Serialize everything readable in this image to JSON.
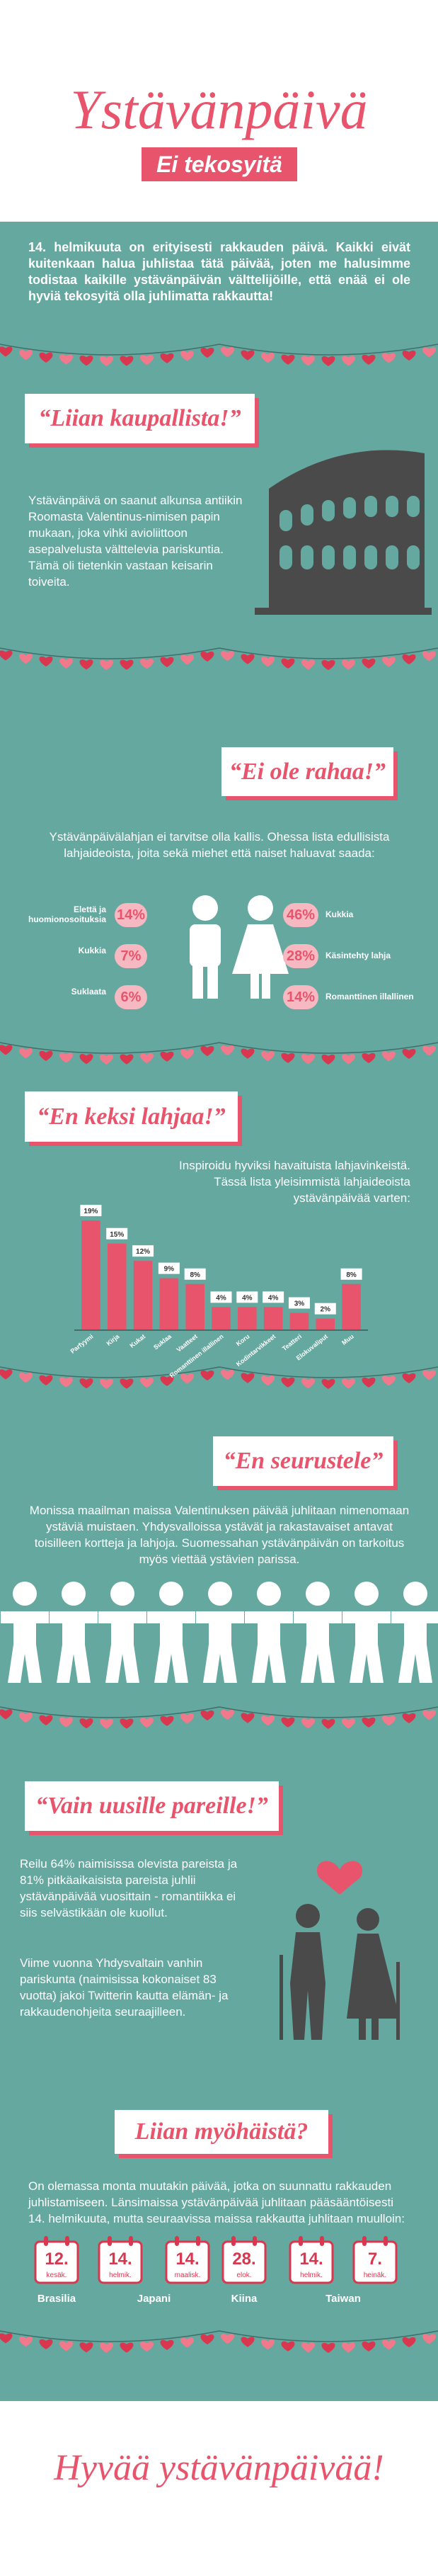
{
  "header": {
    "title": "Ystävänpäivä",
    "subtitle": "Ei tekosyitä"
  },
  "intro": "14. helmikuuta on erityisesti rakkauden päivä. Kaikki eivät kuitenkaan halua juhlistaa tätä päivää, joten me halusimme todistaa kaikille ystävänpäivän välttelijöille, että enää ei ole hyviä tekosyitä olla juhlimatta rakkautta!",
  "sections": [
    {
      "heading": "“Liian kaupallista!”",
      "text": "Ystävänpäivä on saanut alkunsa antiikin Roomasta Valentinus-nimisen papin mukaan, joka vihki avioliittoon asepalvelusta välttelevia pariskuntia. Tämä oli tietenkin vastaan keisarin toiveita."
    },
    {
      "heading": "“Ei ole rahaa!”",
      "text": "Ystävänpäivälahjan ei tarvitse olla kallis. Ohessa lista edullisista lahjaideoista, joita sekä miehet että naiset haluavat saada:",
      "gifts_men": [
        {
          "label": "Elettä ja huomionosoituksia",
          "percent": "14%"
        },
        {
          "label": "Kukkia",
          "percent": "7%"
        },
        {
          "label": "Suklaata",
          "percent": "6%"
        }
      ],
      "gifts_women": [
        {
          "label": "Kukkia",
          "percent": "46%"
        },
        {
          "label": "Käsintehty lahja",
          "percent": "28%"
        },
        {
          "label": "Romanttinen illallinen",
          "percent": "14%"
        }
      ]
    },
    {
      "heading": "“En keksi lahjaa!”",
      "text": "Inspiroidu hyviksi havaituista lahjavinkeistä. Tässä lista yleisimmistä lahjaideoista ystävänpäivää varten:"
    },
    {
      "heading": "“En seurustele”",
      "text": "Monissa maailman maissa Valentinuksen päivää juhlitaan nimenomaan ystäviä muistaen. Yhdysvalloissa ystävät ja rakastavaiset antavat toisilleen kortteja ja lahjoja. Suomessahan ystävänpäivän on tarkoitus myös viettää ystävien parissa."
    },
    {
      "heading": "“Vain uusille pareille!”",
      "paragraphs": [
        "Reilu 64% naimisissa olevista pareista ja 81% pitkäaikaisista pareista juhlii ystävänpäivää vuosittain - romantiikka ei siis selvästikään ole kuollut.",
        "Viime vuonna Yhdysvaltain vanhin pariskunta (naimisissa kokonaiset 83 vuotta) jakoi Twitterin kautta elämän- ja rakkaudenohjeita seuraajilleen."
      ]
    },
    {
      "heading": "Liian myöhäistä?",
      "text": "On olemassa monta muutakin päivää, jotka on suunnattu rakkauden juhlistamiseen. Länsimaissa ystävänpäivää juhlitaan pääsääntöisesti 14. helmikuuta, mutta seuraavissa maissa rakkautta juhlitaan muulloin:",
      "countries": [
        {
          "name": "Brasilia",
          "dates": [
            {
              "day": "12.",
              "month": "kesäk."
            }
          ]
        },
        {
          "name": "Japani",
          "dates": [
            {
              "day": "14.",
              "month": "helmik."
            },
            {
              "day": "14.",
              "month": "maalisk."
            }
          ]
        },
        {
          "name": "Kiina",
          "dates": [
            {
              "day": "28.",
              "month": "elok."
            }
          ]
        },
        {
          "name": "Taiwan",
          "dates": [
            {
              "day": "14.",
              "month": "helmik."
            },
            {
              "day": "7.",
              "month": "heinäk."
            }
          ]
        }
      ]
    }
  ],
  "chart_data": {
    "type": "bar",
    "categories": [
      "Parfyymi",
      "Kirja",
      "Kukat",
      "Suklaa",
      "Vaatteet",
      "Romanttinen illallinen",
      "Koru",
      "Kodintarvikkeet",
      "Teatteri",
      "Elokuvaliput",
      "Muu"
    ],
    "values": [
      19,
      15,
      12,
      9,
      8,
      4,
      4,
      4,
      3,
      2,
      8
    ],
    "value_labels": [
      "19%",
      "15%",
      "12%",
      "9%",
      "8%",
      "4%",
      "4%",
      "4%",
      "3%",
      "2%",
      "8%"
    ],
    "color": "#e8546c",
    "ylim": [
      0,
      20
    ]
  },
  "footer": "Hyvää ystävänpäivää!"
}
